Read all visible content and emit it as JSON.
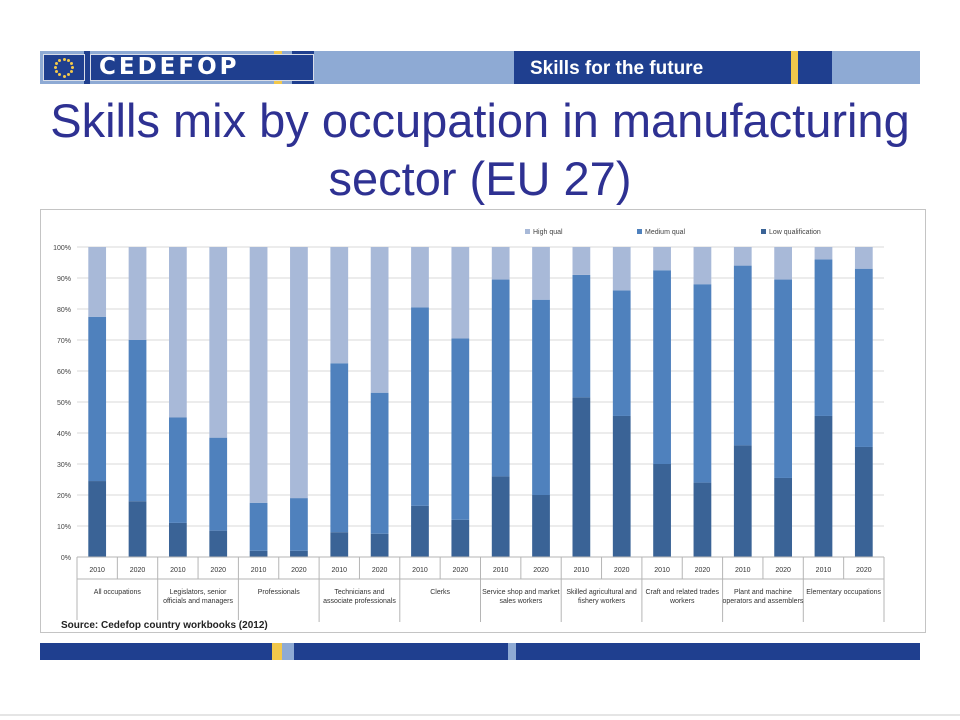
{
  "header": {
    "wordmark": "CEDEFOP",
    "title": "Skills for the future"
  },
  "slide": {
    "title": "Skills mix by occupation in manufacturing sector (EU 27)"
  },
  "source": "Source: Cedefop country workbooks (2012)",
  "colors": {
    "high": "#a8b9d8",
    "medium": "#4f81bd",
    "low": "#3a6396",
    "brand_blue": "#1f3f8f",
    "title_blue": "#2e3192",
    "accent_yellow": "#f2c84b"
  },
  "chart_data": {
    "type": "bar",
    "stacked": true,
    "title": "",
    "ylim": [
      0,
      100
    ],
    "y_ticks": [
      "0%",
      "10%",
      "20%",
      "30%",
      "40%",
      "50%",
      "60%",
      "70%",
      "80%",
      "90%",
      "100%"
    ],
    "legend_position": "top-right",
    "legend": [
      "High qual",
      "Medium qual",
      "Low qualification"
    ],
    "groups": [
      "All occupations",
      "Legislators, senior officials and managers",
      "Professionals",
      "Technicians and associate professionals",
      "Clerks",
      "Service shop and market sales workers",
      "Skilled agricultural and fishery workers",
      "Craft and related trades workers",
      "Plant and machine operators and assemblers",
      "Elementary occupations"
    ],
    "years": [
      "2010",
      "2020"
    ],
    "series": [
      {
        "name": "Low qualification",
        "values": [
          24.5,
          18,
          11,
          8.5,
          2,
          2,
          8,
          7.5,
          16.5,
          12,
          26,
          20,
          51.5,
          45.5,
          30,
          24,
          36,
          25.5,
          45.5,
          35.5
        ]
      },
      {
        "name": "Medium qual",
        "values": [
          53,
          52,
          34,
          30,
          15.5,
          17,
          54.5,
          45.5,
          64,
          58.5,
          63.5,
          63,
          39.5,
          40.5,
          62.5,
          64,
          58,
          64,
          50.5,
          57.5
        ]
      },
      {
        "name": "High qual",
        "values": [
          22.5,
          30,
          55,
          61.5,
          82.5,
          81,
          37.5,
          47,
          19.5,
          29.5,
          10.5,
          17,
          9,
          14,
          7.5,
          12,
          6,
          10.5,
          4,
          7
        ]
      }
    ]
  }
}
